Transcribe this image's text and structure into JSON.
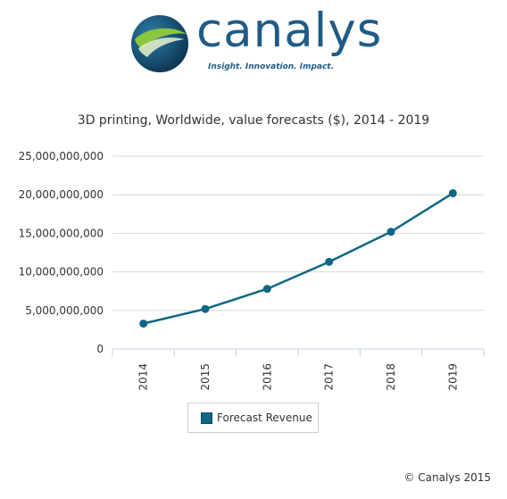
{
  "logo": {
    "brand": "canalys",
    "tagline": "Insight. Innovation. Impact."
  },
  "footer": {
    "copyright": "© Canalys 2015"
  },
  "colors": {
    "series": "#0f6685",
    "brand": "#1f5b86"
  },
  "chart_data": {
    "type": "line",
    "title": "3D printing, Worldwide, value forecasts ($), 2014 - 2019",
    "xlabel": "",
    "ylabel": "",
    "categories": [
      "2014",
      "2015",
      "2016",
      "2017",
      "2018",
      "2019"
    ],
    "series": [
      {
        "name": "Forecast Revenue",
        "values": [
          3300000000,
          5200000000,
          7800000000,
          11300000000,
          15200000000,
          20200000000
        ]
      }
    ],
    "yticks": [
      "0",
      "5,000,000,000",
      "10,000,000,000",
      "15,000,000,000",
      "20,000,000,000",
      "25,000,000,000"
    ],
    "ylim": [
      0,
      25000000000
    ],
    "grid": true,
    "legend": "bottom"
  }
}
